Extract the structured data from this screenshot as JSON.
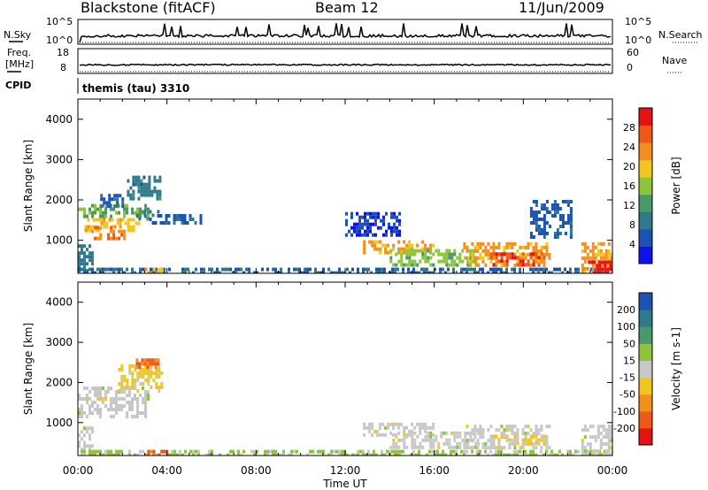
{
  "header": {
    "station": "Blackstone (fitACF)",
    "beam": "Beam 12",
    "date": "11/Jun/2009"
  },
  "strip_nsky": {
    "left_label": "N.Sky",
    "left_top_tick": "10^5",
    "left_bottom_tick": "10^0",
    "right_top_tick": "10^5",
    "right_bottom_tick": "10^0",
    "right_label": "N.Search"
  },
  "strip_freq": {
    "left_label_1": "Freq.",
    "left_label_2": "[MHz]",
    "left_top_tick": "18",
    "left_bottom_tick": "8",
    "right_top_tick": "60",
    "right_bottom_tick": "0",
    "right_label": "Nave"
  },
  "cpid": {
    "label": "CPID",
    "value": "themis (tau) 3310"
  },
  "chart_data": [
    {
      "type": "heatmap",
      "name_hint": "power",
      "ylabel": "Slant Range [km]",
      "ylim": [
        180,
        4500
      ],
      "yticks": [
        "1000",
        "2000",
        "3000",
        "4000"
      ],
      "ytick_values": [
        1000,
        2000,
        3000,
        4000
      ],
      "xlim_hours": [
        0,
        24
      ],
      "colorbar_label": "Power [dB]",
      "colorbar_ticks": [
        "4",
        "8",
        "12",
        "16",
        "20",
        "24",
        "28"
      ],
      "colorbar_tick_values": [
        4,
        8,
        12,
        16,
        20,
        24,
        28
      ],
      "colorbar_range": [
        0,
        32
      ],
      "colorbar_colors": [
        "#1111ee",
        "#1b52b4",
        "#2e7a8c",
        "#4a9868",
        "#8cc43a",
        "#f0c81c",
        "#f3901b",
        "#f05818",
        "#e81010"
      ],
      "regions": [
        {
          "t0": 0.0,
          "t1": 3.1,
          "r0": 1550,
          "r1": 1900,
          "v": 14
        },
        {
          "t0": 0.3,
          "t1": 2.7,
          "r0": 1200,
          "r1": 1550,
          "v": 20
        },
        {
          "t0": 0.6,
          "t1": 2.1,
          "r0": 1050,
          "r1": 1350,
          "v": 25
        },
        {
          "t0": 1.0,
          "t1": 2.0,
          "r0": 1850,
          "r1": 2150,
          "v": 7
        },
        {
          "t0": 2.2,
          "t1": 3.7,
          "r0": 2000,
          "r1": 2600,
          "v": 9
        },
        {
          "t0": 2.6,
          "t1": 3.6,
          "r0": 1500,
          "r1": 1750,
          "v": 10
        },
        {
          "t0": 3.2,
          "t1": 5.5,
          "r0": 1400,
          "r1": 1650,
          "v": 6
        },
        {
          "t0": 0.0,
          "t1": 0.7,
          "r0": 200,
          "r1": 900,
          "v": 9
        },
        {
          "t0": 0.0,
          "t1": 24.0,
          "r0": 200,
          "r1": 320,
          "v": 7
        },
        {
          "t0": 3.0,
          "t1": 4.0,
          "r0": 180,
          "r1": 320,
          "v": 21
        },
        {
          "t0": 12.0,
          "t1": 14.5,
          "r0": 1100,
          "r1": 1700,
          "v": 4
        },
        {
          "t0": 12.8,
          "t1": 16.0,
          "r0": 700,
          "r1": 1000,
          "v": 22
        },
        {
          "t0": 14.0,
          "t1": 18.0,
          "r0": 380,
          "r1": 780,
          "v": 15
        },
        {
          "t0": 17.3,
          "t1": 21.2,
          "r0": 400,
          "r1": 950,
          "v": 22
        },
        {
          "t0": 18.5,
          "t1": 21.0,
          "r0": 400,
          "r1": 700,
          "v": 28
        },
        {
          "t0": 20.3,
          "t1": 22.2,
          "r0": 1100,
          "r1": 2000,
          "v": 6
        },
        {
          "t0": 22.6,
          "t1": 24.0,
          "r0": 180,
          "r1": 950,
          "v": 22
        },
        {
          "t0": 22.9,
          "t1": 24.0,
          "r0": 180,
          "r1": 500,
          "v": 31
        }
      ]
    },
    {
      "type": "heatmap",
      "name_hint": "velocity",
      "ylabel": "Slant Range [km]",
      "ylim": [
        180,
        4500
      ],
      "yticks": [
        "1000",
        "2000",
        "3000",
        "4000"
      ],
      "ytick_values": [
        1000,
        2000,
        3000,
        4000
      ],
      "xlim_hours": [
        0,
        24
      ],
      "xlabel": "Time UT",
      "xticks": [
        "00:00",
        "04:00",
        "08:00",
        "12:00",
        "16:00",
        "20:00",
        "00:00"
      ],
      "xtick_values": [
        0,
        4,
        8,
        12,
        16,
        20,
        24
      ],
      "colorbar_label": "Velocity [m s-1]",
      "colorbar_ticks": [
        "-200",
        "-100",
        "-50",
        "-15",
        "15",
        "50",
        "100",
        "200"
      ],
      "colorbar_tick_values": [
        -200,
        -100,
        -50,
        -15,
        15,
        50,
        100,
        200
      ],
      "colorbar_range": [
        -250,
        250
      ],
      "colorbar_colors": [
        "#e81010",
        "#f05818",
        "#f3901b",
        "#f0c81c",
        "#c8c8c8",
        "#8cc43a",
        "#4a9868",
        "#2e7a8c",
        "#1b52b4"
      ],
      "regions": [
        {
          "t0": 0.0,
          "t1": 3.1,
          "r0": 1150,
          "r1": 1900,
          "v": 0
        },
        {
          "t0": 1.8,
          "t1": 3.8,
          "r0": 1800,
          "r1": 2450,
          "v": -45
        },
        {
          "t0": 2.6,
          "t1": 3.6,
          "r0": 2400,
          "r1": 2600,
          "v": -150
        },
        {
          "t0": 0.0,
          "t1": 0.7,
          "r0": 200,
          "r1": 900,
          "v": 0
        },
        {
          "t0": 0.0,
          "t1": 24.0,
          "r0": 200,
          "r1": 320,
          "v": 40
        },
        {
          "t0": 3.0,
          "t1": 4.0,
          "r0": 180,
          "r1": 320,
          "v": -150
        },
        {
          "t0": 12.8,
          "t1": 16.0,
          "r0": 700,
          "r1": 1000,
          "v": 0
        },
        {
          "t0": 14.0,
          "t1": 18.0,
          "r0": 380,
          "r1": 780,
          "v": 0
        },
        {
          "t0": 17.3,
          "t1": 21.2,
          "r0": 400,
          "r1": 950,
          "v": 0
        },
        {
          "t0": 18.5,
          "t1": 21.0,
          "r0": 450,
          "r1": 700,
          "v": -40
        },
        {
          "t0": 22.6,
          "t1": 24.0,
          "r0": 180,
          "r1": 950,
          "v": 0
        }
      ]
    }
  ]
}
